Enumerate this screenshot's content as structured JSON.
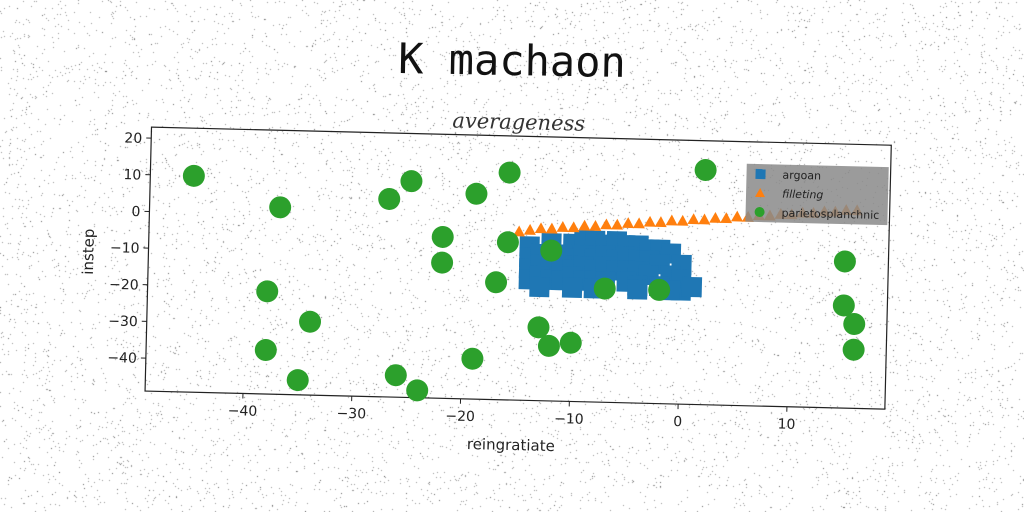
{
  "page_title": "K machaon",
  "chart_data": {
    "type": "scatter",
    "title": "averageness",
    "xlabel": "reingratiate",
    "ylabel": "instep",
    "xlim": [
      -49,
      19
    ],
    "ylim": [
      -49,
      23
    ],
    "xticks": [
      -40,
      -30,
      -20,
      -10,
      0,
      10
    ],
    "yticks": [
      20,
      10,
      0,
      -10,
      -20,
      -30,
      -40
    ],
    "xtick_labels": [
      "−40",
      "−30",
      "−20",
      "−10",
      "0",
      "10"
    ],
    "ytick_labels": [
      "20",
      "10",
      "0",
      "−10",
      "−20",
      "−30",
      "−40"
    ],
    "grid": false,
    "legend_position": "top-right",
    "series": [
      {
        "name": "argoan",
        "marker": "square",
        "color": "#1f77b4",
        "points": [
          [
            -14,
            -7
          ],
          [
            -12,
            -6
          ],
          [
            -10,
            -6
          ],
          [
            -9,
            -5
          ],
          [
            -8,
            -5
          ],
          [
            -7,
            -6
          ],
          [
            -6,
            -5
          ],
          [
            -5,
            -6
          ],
          [
            -4,
            -6
          ],
          [
            -3,
            -7
          ],
          [
            -2,
            -7
          ],
          [
            -1,
            -8
          ],
          [
            -14,
            -10
          ],
          [
            -13,
            -9
          ],
          [
            -11,
            -9
          ],
          [
            -10,
            -10
          ],
          [
            -9,
            -9
          ],
          [
            -8,
            -10
          ],
          [
            -7,
            -9
          ],
          [
            -6,
            -10
          ],
          [
            -5,
            -9
          ],
          [
            -4,
            -10
          ],
          [
            -3,
            -10
          ],
          [
            -2,
            -11
          ],
          [
            0,
            -11
          ],
          [
            -14,
            -13
          ],
          [
            -13,
            -12
          ],
          [
            -12,
            -13
          ],
          [
            -11,
            -12
          ],
          [
            -10,
            -13
          ],
          [
            -9,
            -12
          ],
          [
            -8,
            -13
          ],
          [
            -7,
            -12
          ],
          [
            -6,
            -13
          ],
          [
            -5,
            -13
          ],
          [
            -4,
            -13
          ],
          [
            -3,
            -14
          ],
          [
            -1,
            -14
          ],
          [
            0,
            -15
          ],
          [
            -14,
            -16
          ],
          [
            -13,
            -15
          ],
          [
            -12,
            -16
          ],
          [
            -11,
            -16
          ],
          [
            -10,
            -15
          ],
          [
            -9,
            -16
          ],
          [
            -8,
            -16
          ],
          [
            -7,
            -16
          ],
          [
            -5,
            -16
          ],
          [
            -4,
            -17
          ],
          [
            -2,
            -17
          ],
          [
            0,
            -18
          ],
          [
            1,
            -17
          ],
          [
            -13,
            -18
          ],
          [
            -10,
            -18
          ],
          [
            -8,
            -18
          ],
          [
            -4,
            -18
          ],
          [
            -1,
            -18
          ]
        ]
      },
      {
        "name": "filleting",
        "marker": "triangle",
        "color": "#ff7f0e",
        "points": [
          [
            -15,
            -3
          ],
          [
            -14,
            -2.5
          ],
          [
            -13,
            -2
          ],
          [
            -12,
            -2
          ],
          [
            -11,
            -1.5
          ],
          [
            -10,
            -1.5
          ],
          [
            -9,
            -1
          ],
          [
            -8,
            -1
          ],
          [
            -7,
            -0.5
          ],
          [
            -6,
            -0.5
          ],
          [
            -5,
            0
          ],
          [
            -4,
            0
          ],
          [
            -3,
            0.5
          ],
          [
            -2,
            0.5
          ],
          [
            -1,
            1
          ],
          [
            0,
            1
          ],
          [
            1,
            1.5
          ],
          [
            2,
            1.5
          ],
          [
            3,
            2
          ],
          [
            4,
            2
          ],
          [
            5,
            2.5
          ],
          [
            6,
            2.5
          ],
          [
            7,
            3
          ],
          [
            8,
            3
          ],
          [
            9,
            3.5
          ],
          [
            10,
            3.5
          ],
          [
            11,
            4
          ],
          [
            12,
            4
          ],
          [
            13,
            4.5
          ],
          [
            14,
            4.5
          ],
          [
            15,
            5
          ],
          [
            16,
            5
          ]
        ]
      },
      {
        "name": "parietosplanchnic",
        "marker": "circle",
        "color": "#2ca02c",
        "points": [
          [
            -45,
            10
          ],
          [
            -37,
            2
          ],
          [
            -38,
            -21
          ],
          [
            -34,
            -29
          ],
          [
            -38,
            -37
          ],
          [
            -35,
            -45
          ],
          [
            -27,
            5
          ],
          [
            -25,
            10
          ],
          [
            -26,
            -43
          ],
          [
            -24,
            -47
          ],
          [
            -22,
            -5
          ],
          [
            -22,
            -12
          ],
          [
            -19,
            7
          ],
          [
            -19,
            -38
          ],
          [
            -17,
            -17
          ],
          [
            -16,
            13
          ],
          [
            -16,
            -6
          ],
          [
            -13,
            -29
          ],
          [
            -12,
            -34
          ],
          [
            -12,
            -8
          ],
          [
            -10,
            -33
          ],
          [
            -7,
            -18
          ],
          [
            -2,
            -18
          ],
          [
            2,
            15
          ],
          [
            15,
            -9
          ],
          [
            15,
            -21
          ],
          [
            16,
            -26
          ],
          [
            16,
            -33
          ]
        ]
      }
    ]
  }
}
